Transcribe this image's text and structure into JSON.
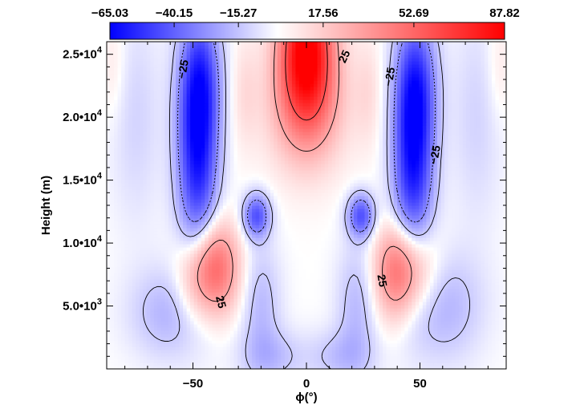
{
  "chart_data": {
    "type": "heatmap",
    "title": "",
    "xlabel": "ϕ(°)",
    "ylabel": "Height (m)",
    "xlim": [
      -88,
      88
    ],
    "ylim": [
      0,
      26000
    ],
    "x_ticks": [
      {
        "value": -50,
        "label": "−50"
      },
      {
        "value": 0,
        "label": "0"
      },
      {
        "value": 50,
        "label": "50"
      }
    ],
    "y_ticks": [
      {
        "value": 5000,
        "mantissa": "5.0",
        "exponent": "3"
      },
      {
        "value": 10000,
        "mantissa": "1.0",
        "exponent": "4"
      },
      {
        "value": 15000,
        "mantissa": "1.5",
        "exponent": "4"
      },
      {
        "value": 20000,
        "mantissa": "2.0",
        "exponent": "4"
      },
      {
        "value": 25000,
        "mantissa": "2.5",
        "exponent": "4"
      }
    ],
    "colorbar": {
      "min": -65.03,
      "max": 87.82,
      "tick_labels": [
        "−65.03",
        "−40.15",
        "−15.27",
        "17.56",
        "52.69",
        "87.82"
      ],
      "tick_values": [
        -65.03,
        -40.15,
        -15.27,
        17.56,
        52.69,
        87.82
      ],
      "colors": {
        "low": "#0000ff",
        "mid": "#ffffff",
        "high": "#ff0000"
      }
    },
    "features": [
      {
        "x": -48,
        "y": 18000,
        "sx": 6,
        "sy": 6000,
        "amp": -62
      },
      {
        "x": -46,
        "y": 23000,
        "sx": 6,
        "sy": 3500,
        "amp": -25
      },
      {
        "x": 47,
        "y": 17500,
        "sx": 6,
        "sy": 6000,
        "amp": -62
      },
      {
        "x": 49,
        "y": 22500,
        "sx": 6,
        "sy": 3500,
        "amp": -25
      },
      {
        "x": 0,
        "y": 25500,
        "sx": 8,
        "sy": 4000,
        "amp": 88
      },
      {
        "x": 0,
        "y": 21000,
        "sx": 12,
        "sy": 3500,
        "amp": 25
      },
      {
        "x": -40,
        "y": 8000,
        "sx": 7,
        "sy": 2500,
        "amp": 48
      },
      {
        "x": -50,
        "y": 7000,
        "sx": 6,
        "sy": 2500,
        "amp": 20
      },
      {
        "x": 45,
        "y": 8000,
        "sx": 8,
        "sy": 2500,
        "amp": 40
      },
      {
        "x": 38,
        "y": 7500,
        "sx": 6,
        "sy": 2500,
        "amp": 20
      },
      {
        "x": -22,
        "y": 12200,
        "sx": 4,
        "sy": 1200,
        "amp": -42
      },
      {
        "x": 24,
        "y": 12200,
        "sx": 4,
        "sy": 1200,
        "amp": -42
      },
      {
        "x": -60,
        "y": 4500,
        "sx": 12,
        "sy": 2500,
        "amp": -16
      },
      {
        "x": 60,
        "y": 5000,
        "sx": 12,
        "sy": 3000,
        "amp": -16
      },
      {
        "x": -20,
        "y": 5000,
        "sx": 6,
        "sy": 3500,
        "amp": -14
      },
      {
        "x": 22,
        "y": 5000,
        "sx": 6,
        "sy": 3500,
        "amp": -14
      },
      {
        "x": -15,
        "y": 1000,
        "sx": 10,
        "sy": 1500,
        "amp": -12
      },
      {
        "x": 15,
        "y": 1000,
        "sx": 10,
        "sy": 1500,
        "amp": -12
      },
      {
        "x": -75,
        "y": 20000,
        "sx": 8,
        "sy": 6000,
        "amp": -8
      },
      {
        "x": 75,
        "y": 20000,
        "sx": 8,
        "sy": 6000,
        "amp": -8
      },
      {
        "x": -85,
        "y": 24000,
        "sx": 4,
        "sy": 3000,
        "amp": 6
      },
      {
        "x": 85,
        "y": 24000,
        "sx": 4,
        "sy": 3000,
        "amp": 6
      },
      {
        "x": -27,
        "y": 22000,
        "sx": 4,
        "sy": 3000,
        "amp": 8
      },
      {
        "x": 27,
        "y": 22000,
        "sx": 4,
        "sy": 3000,
        "amp": 8
      }
    ],
    "contour_labels": [
      {
        "text": "−25",
        "x": -54,
        "y": 23800,
        "rotate": -80
      },
      {
        "text": "25",
        "x": 17,
        "y": 24800,
        "rotate": -65
      },
      {
        "text": "−25",
        "x": 37,
        "y": 23200,
        "rotate": -80
      },
      {
        "text": "−25",
        "x": 57,
        "y": 17000,
        "rotate": -80
      },
      {
        "text": "25",
        "x": -38,
        "y": 5300,
        "rotate": 75
      },
      {
        "text": "25",
        "x": 33,
        "y": 7000,
        "rotate": 80
      }
    ]
  }
}
